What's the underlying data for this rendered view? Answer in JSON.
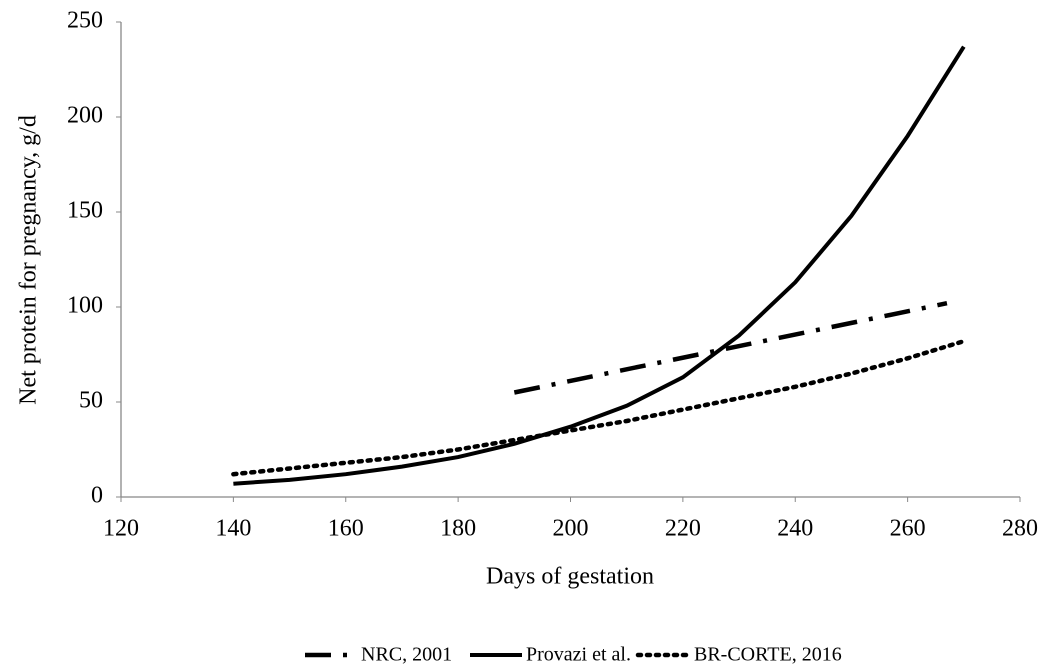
{
  "chart_data": {
    "type": "line",
    "x_label": "Days of gestation",
    "y_label": "Net protein for pregnancy, g/d",
    "xlim": [
      120,
      280
    ],
    "xticks": [
      120,
      140,
      160,
      180,
      200,
      220,
      240,
      260,
      280
    ],
    "ylim": [
      0,
      250
    ],
    "yticks": [
      0,
      50,
      100,
      150,
      200,
      250
    ],
    "grid": false,
    "legend": "bottom",
    "series": [
      {
        "name": "NRC, 2001",
        "color": "#000000",
        "style": "dash-dot",
        "x": [
          190,
          267
        ],
        "values": [
          55,
          102
        ]
      },
      {
        "name": "Provazi et al.",
        "color": "#000000",
        "style": "solid",
        "x": [
          140,
          150,
          160,
          170,
          180,
          190,
          200,
          210,
          220,
          230,
          240,
          250,
          260,
          270
        ],
        "values": [
          7,
          9,
          12,
          16,
          21,
          28,
          37,
          48,
          63,
          85,
          113,
          148,
          190,
          237
        ]
      },
      {
        "name": "BR-CORTE, 2016",
        "color": "#000000",
        "style": "dotted",
        "x": [
          140,
          150,
          160,
          170,
          180,
          190,
          200,
          210,
          220,
          230,
          240,
          250,
          260,
          270
        ],
        "values": [
          12,
          15,
          18,
          21,
          25,
          30,
          35,
          40,
          46,
          52,
          58,
          65,
          73,
          82
        ]
      }
    ]
  }
}
